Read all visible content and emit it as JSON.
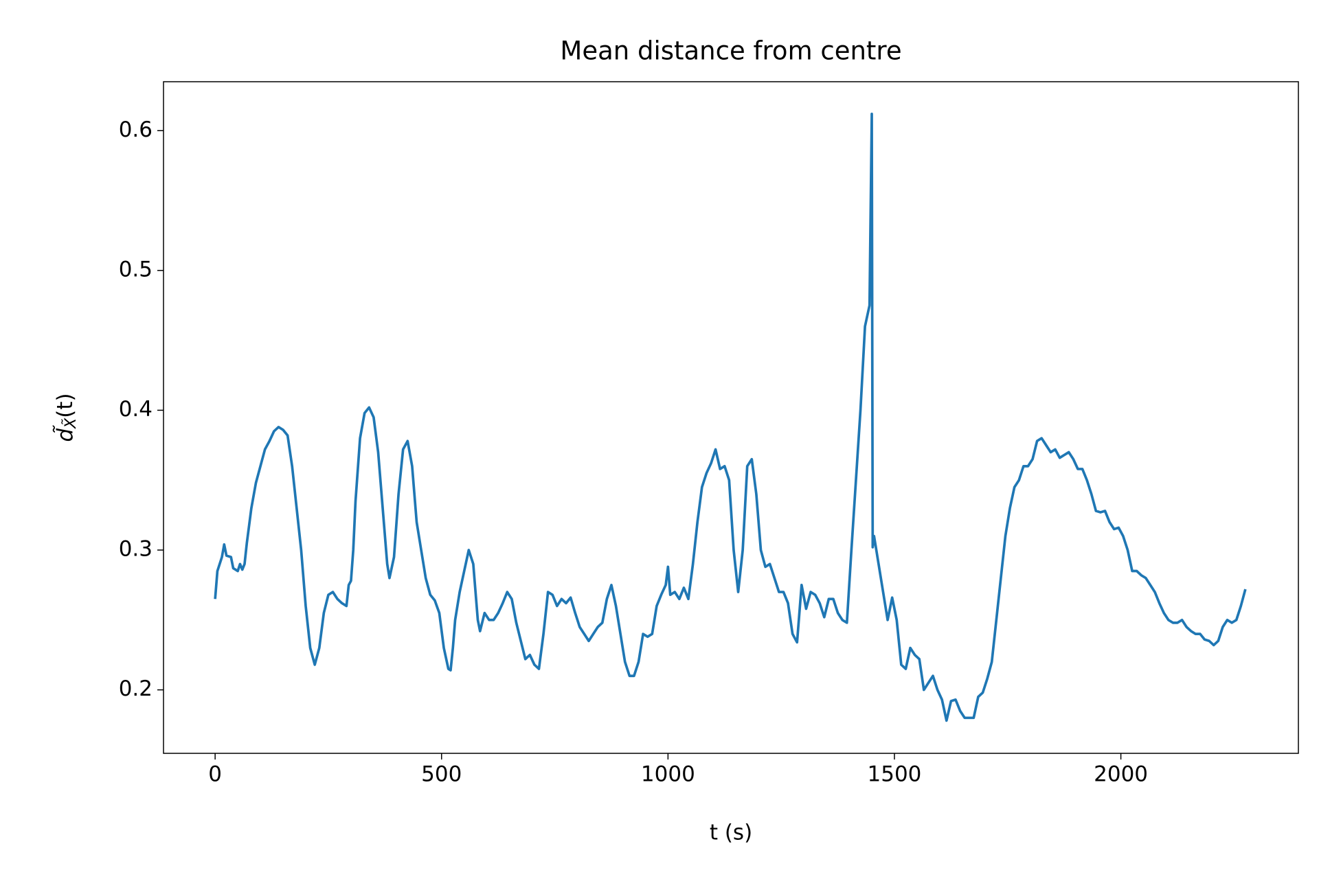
{
  "chart_data": {
    "type": "line",
    "title": "Mean distance from centre",
    "xlabel": "t (s)",
    "ylabel": {
      "main": "d̃",
      "subscript": "X̃",
      "tail": "(t)"
    },
    "color": "#1f77b4",
    "xlim": [
      -114,
      2392
    ],
    "xticks": [
      0,
      500,
      1000,
      1500,
      2000
    ],
    "ylim": [
      0.1546,
      0.635
    ],
    "yticks": [
      0.2,
      0.3,
      0.4,
      0.5,
      0.6
    ],
    "grid": false,
    "x": [
      0,
      5,
      15,
      20,
      25,
      35,
      40,
      50,
      55,
      60,
      65,
      70,
      80,
      90,
      100,
      110,
      120,
      130,
      140,
      150,
      160,
      170,
      180,
      190,
      200,
      210,
      220,
      230,
      240,
      250,
      260,
      270,
      280,
      290,
      295,
      300,
      305,
      310,
      320,
      330,
      340,
      350,
      360,
      370,
      380,
      385,
      395,
      405,
      415,
      425,
      435,
      445,
      455,
      465,
      475,
      485,
      495,
      505,
      515,
      520,
      525,
      530,
      540,
      550,
      560,
      570,
      575,
      580,
      585,
      595,
      605,
      615,
      625,
      635,
      645,
      655,
      665,
      675,
      685,
      695,
      705,
      715,
      725,
      735,
      745,
      755,
      765,
      775,
      785,
      795,
      805,
      815,
      825,
      835,
      845,
      855,
      865,
      875,
      885,
      895,
      905,
      915,
      925,
      935,
      945,
      955,
      965,
      975,
      985,
      995,
      1000,
      1005,
      1015,
      1025,
      1035,
      1045,
      1055,
      1065,
      1075,
      1085,
      1095,
      1105,
      1115,
      1125,
      1135,
      1145,
      1155,
      1165,
      1175,
      1185,
      1195,
      1205,
      1215,
      1225,
      1235,
      1245,
      1255,
      1265,
      1275,
      1285,
      1295,
      1305,
      1315,
      1325,
      1335,
      1345,
      1355,
      1365,
      1375,
      1385,
      1395,
      1405,
      1415,
      1425,
      1435,
      1445,
      1450,
      1452,
      1455,
      1465,
      1475,
      1485,
      1495,
      1505,
      1515,
      1525,
      1535,
      1545,
      1555,
      1565,
      1575,
      1585,
      1595,
      1605,
      1615,
      1625,
      1635,
      1645,
      1655,
      1665,
      1675,
      1685,
      1695,
      1705,
      1715,
      1725,
      1735,
      1745,
      1755,
      1765,
      1775,
      1785,
      1795,
      1805,
      1815,
      1825,
      1835,
      1845,
      1855,
      1865,
      1875,
      1885,
      1895,
      1905,
      1915,
      1925,
      1935,
      1945,
      1955,
      1965,
      1975,
      1985,
      1995,
      2005,
      2015,
      2025,
      2035,
      2045,
      2055,
      2065,
      2075,
      2085,
      2095,
      2105,
      2115,
      2125,
      2135,
      2145,
      2155,
      2165,
      2175,
      2185,
      2195,
      2205,
      2215,
      2225,
      2235,
      2245,
      2255,
      2265,
      2275
    ],
    "values": [
      0.265,
      0.285,
      0.295,
      0.304,
      0.296,
      0.295,
      0.287,
      0.285,
      0.29,
      0.286,
      0.29,
      0.305,
      0.33,
      0.348,
      0.36,
      0.372,
      0.378,
      0.385,
      0.388,
      0.386,
      0.382,
      0.36,
      0.33,
      0.3,
      0.26,
      0.23,
      0.218,
      0.23,
      0.255,
      0.268,
      0.27,
      0.265,
      0.262,
      0.26,
      0.275,
      0.278,
      0.3,
      0.335,
      0.38,
      0.398,
      0.402,
      0.395,
      0.37,
      0.33,
      0.29,
      0.28,
      0.295,
      0.34,
      0.372,
      0.378,
      0.36,
      0.32,
      0.3,
      0.28,
      0.268,
      0.264,
      0.255,
      0.23,
      0.215,
      0.214,
      0.23,
      0.25,
      0.27,
      0.285,
      0.3,
      0.29,
      0.27,
      0.25,
      0.242,
      0.255,
      0.25,
      0.25,
      0.255,
      0.262,
      0.27,
      0.265,
      0.248,
      0.235,
      0.222,
      0.225,
      0.218,
      0.215,
      0.24,
      0.27,
      0.268,
      0.26,
      0.265,
      0.262,
      0.266,
      0.255,
      0.245,
      0.24,
      0.235,
      0.24,
      0.245,
      0.248,
      0.265,
      0.275,
      0.26,
      0.24,
      0.22,
      0.21,
      0.21,
      0.22,
      0.24,
      0.238,
      0.24,
      0.26,
      0.268,
      0.275,
      0.288,
      0.268,
      0.27,
      0.265,
      0.273,
      0.265,
      0.29,
      0.32,
      0.345,
      0.355,
      0.362,
      0.372,
      0.358,
      0.36,
      0.35,
      0.3,
      0.27,
      0.3,
      0.36,
      0.365,
      0.34,
      0.3,
      0.288,
      0.29,
      0.28,
      0.27,
      0.27,
      0.262,
      0.24,
      0.234,
      0.275,
      0.258,
      0.27,
      0.268,
      0.262,
      0.252,
      0.265,
      0.265,
      0.255,
      0.25,
      0.248,
      0.3,
      0.35,
      0.4,
      0.46,
      0.475,
      0.612,
      0.302,
      0.31,
      0.29,
      0.27,
      0.25,
      0.266,
      0.25,
      0.218,
      0.215,
      0.23,
      0.225,
      0.222,
      0.2,
      0.205,
      0.21,
      0.2,
      0.193,
      0.178,
      0.192,
      0.193,
      0.185,
      0.18,
      0.18,
      0.18,
      0.195,
      0.198,
      0.208,
      0.22,
      0.25,
      0.28,
      0.31,
      0.33,
      0.345,
      0.35,
      0.36,
      0.36,
      0.365,
      0.378,
      0.38,
      0.375,
      0.37,
      0.372,
      0.366,
      0.368,
      0.37,
      0.365,
      0.358,
      0.358,
      0.35,
      0.34,
      0.328,
      0.327,
      0.328,
      0.32,
      0.315,
      0.316,
      0.31,
      0.3,
      0.285,
      0.285,
      0.282,
      0.28,
      0.275,
      0.27,
      0.262,
      0.255,
      0.25,
      0.248,
      0.248,
      0.25,
      0.245,
      0.242,
      0.24,
      0.24,
      0.236,
      0.235,
      0.232,
      0.235,
      0.245,
      0.25,
      0.248,
      0.25,
      0.26,
      0.272
    ]
  }
}
